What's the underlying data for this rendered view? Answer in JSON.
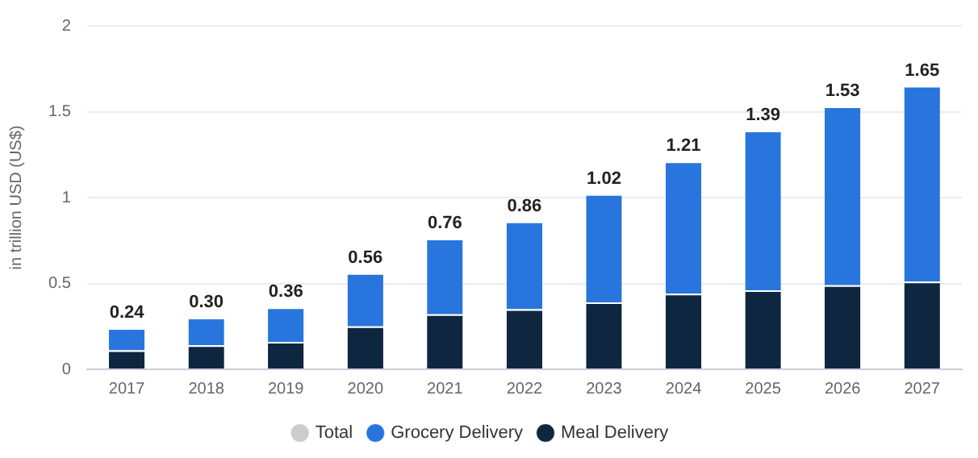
{
  "chart_data": {
    "type": "bar",
    "stacked": true,
    "ylabel": "in trillion USD (US$)",
    "categories": [
      "2017",
      "2018",
      "2019",
      "2020",
      "2021",
      "2022",
      "2023",
      "2024",
      "2025",
      "2026",
      "2027"
    ],
    "series": [
      {
        "name": "Meal Delivery",
        "color": "#0f2640",
        "values": [
          0.11,
          0.14,
          0.16,
          0.25,
          0.32,
          0.35,
          0.39,
          0.44,
          0.46,
          0.49,
          0.51
        ]
      },
      {
        "name": "Grocery Delivery",
        "color": "#2876dd",
        "values": [
          0.13,
          0.16,
          0.2,
          0.31,
          0.44,
          0.51,
          0.63,
          0.77,
          0.93,
          1.04,
          1.14
        ]
      },
      {
        "name": "Total",
        "color": "#cccccc",
        "values": [
          null,
          null,
          null,
          null,
          null,
          null,
          null,
          null,
          null,
          null,
          null
        ]
      }
    ],
    "totals": [
      "0.24",
      "0.30",
      "0.36",
      "0.56",
      "0.76",
      "0.86",
      "1.02",
      "1.21",
      "1.39",
      "1.53",
      "1.65"
    ],
    "ylim": [
      0,
      2
    ],
    "yticks": [
      0,
      0.5,
      1,
      1.5,
      2
    ],
    "grid": "y",
    "legend": "bottom"
  }
}
